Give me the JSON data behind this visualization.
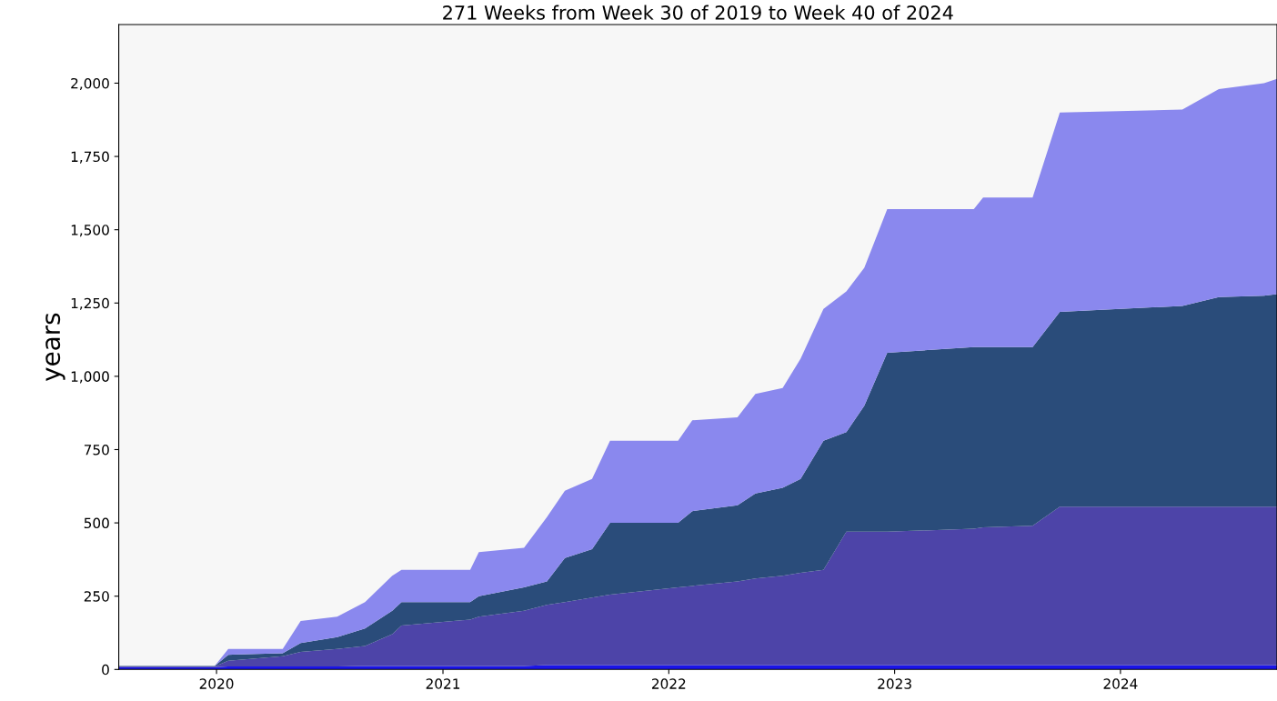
{
  "chart_data": {
    "type": "area",
    "stacked": true,
    "title": "271 Weeks from Week 30 of 2019 to Week 40 of 2024",
    "ylabel": "years",
    "x": [
      "2019-07-27",
      "2019-12-29",
      "2020-01-20",
      "2020-04-17",
      "2020-05-16",
      "2020-07-14",
      "2020-08-28",
      "2020-10-11",
      "2020-10-26",
      "2021-02-14",
      "2021-02-28",
      "2021-05-12",
      "2021-06-18",
      "2021-07-17",
      "2021-08-30",
      "2021-09-28",
      "2022-01-16",
      "2022-02-08",
      "2022-04-22",
      "2022-05-21",
      "2022-07-04",
      "2022-08-02",
      "2022-09-08",
      "2022-10-15",
      "2022-11-13",
      "2022-12-20",
      "2023-05-09",
      "2023-05-24",
      "2023-08-12",
      "2023-09-25",
      "2024-04-10",
      "2024-06-08",
      "2024-08-20",
      "2024-09-10"
    ],
    "series": [
      {
        "color": "#1a14e8",
        "values": [
          8,
          8,
          10,
          10,
          10,
          10,
          12,
          12,
          12,
          12,
          12,
          12,
          15,
          15,
          15,
          15,
          15,
          15,
          15,
          15,
          15,
          15,
          15,
          15,
          15,
          15,
          15,
          15,
          15,
          15,
          15,
          15,
          15,
          15
        ]
      },
      {
        "color": "#4d44a8",
        "values": [
          2,
          2,
          20,
          35,
          50,
          60,
          68,
          108,
          138,
          158,
          168,
          188,
          205,
          215,
          230,
          240,
          265,
          270,
          285,
          295,
          305,
          315,
          325,
          455,
          455,
          455,
          465,
          470,
          475,
          540,
          540,
          540,
          540,
          540
        ]
      },
      {
        "color": "#2a4c7a",
        "values": [
          2,
          2,
          20,
          10,
          30,
          40,
          60,
          80,
          80,
          60,
          70,
          80,
          80,
          150,
          165,
          245,
          220,
          255,
          260,
          290,
          300,
          320,
          440,
          340,
          430,
          610,
          620,
          615,
          610,
          665,
          685,
          715,
          720,
          725
        ]
      },
      {
        "color": "#8a88ee",
        "values": [
          0,
          0,
          20,
          15,
          75,
          70,
          90,
          120,
          110,
          110,
          150,
          135,
          220,
          230,
          240,
          280,
          280,
          310,
          300,
          340,
          340,
          410,
          450,
          480,
          470,
          490,
          470,
          510,
          510,
          680,
          670,
          710,
          725,
          735
        ]
      }
    ],
    "xlim": [
      "2019-07-27",
      "2024-09-10"
    ],
    "xticks": [
      {
        "value": "2020-01-01",
        "label": "2020"
      },
      {
        "value": "2021-01-01",
        "label": "2021"
      },
      {
        "value": "2022-01-01",
        "label": "2022"
      },
      {
        "value": "2023-01-01",
        "label": "2023"
      },
      {
        "value": "2024-01-01",
        "label": "2024"
      }
    ],
    "ylim": [
      0,
      2200
    ],
    "yticks": [
      {
        "value": 0,
        "label": "0"
      },
      {
        "value": 250,
        "label": "250"
      },
      {
        "value": 500,
        "label": "500"
      },
      {
        "value": 750,
        "label": "750"
      },
      {
        "value": 1000,
        "label": "1,000"
      },
      {
        "value": 1250,
        "label": "1,250"
      },
      {
        "value": 1500,
        "label": "1,500"
      },
      {
        "value": 1750,
        "label": "1,750"
      },
      {
        "value": 2000,
        "label": "2,000"
      }
    ],
    "grid": false,
    "legend": false
  }
}
